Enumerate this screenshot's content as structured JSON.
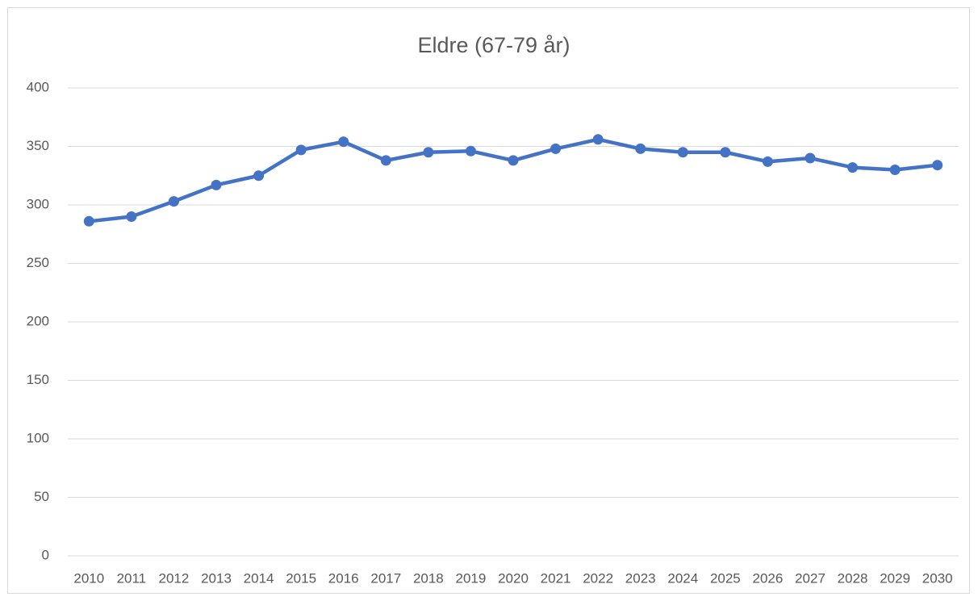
{
  "chart_data": {
    "type": "line",
    "title": "Eldre (67-79 år)",
    "categories": [
      "2010",
      "2011",
      "2012",
      "2013",
      "2014",
      "2015",
      "2016",
      "2017",
      "2018",
      "2019",
      "2020",
      "2021",
      "2022",
      "2023",
      "2024",
      "2025",
      "2026",
      "2027",
      "2028",
      "2029",
      "2030"
    ],
    "series": [
      {
        "name": "Eldre (67-79 år)",
        "color": "#4472c4",
        "values": [
          286,
          290,
          303,
          317,
          325,
          347,
          354,
          338,
          345,
          346,
          338,
          348,
          356,
          348,
          345,
          345,
          337,
          340,
          332,
          330,
          334
        ]
      }
    ],
    "ylim": [
      0,
      400
    ],
    "yticks": [
      0,
      50,
      100,
      150,
      200,
      250,
      300,
      350,
      400
    ],
    "grid": true
  }
}
